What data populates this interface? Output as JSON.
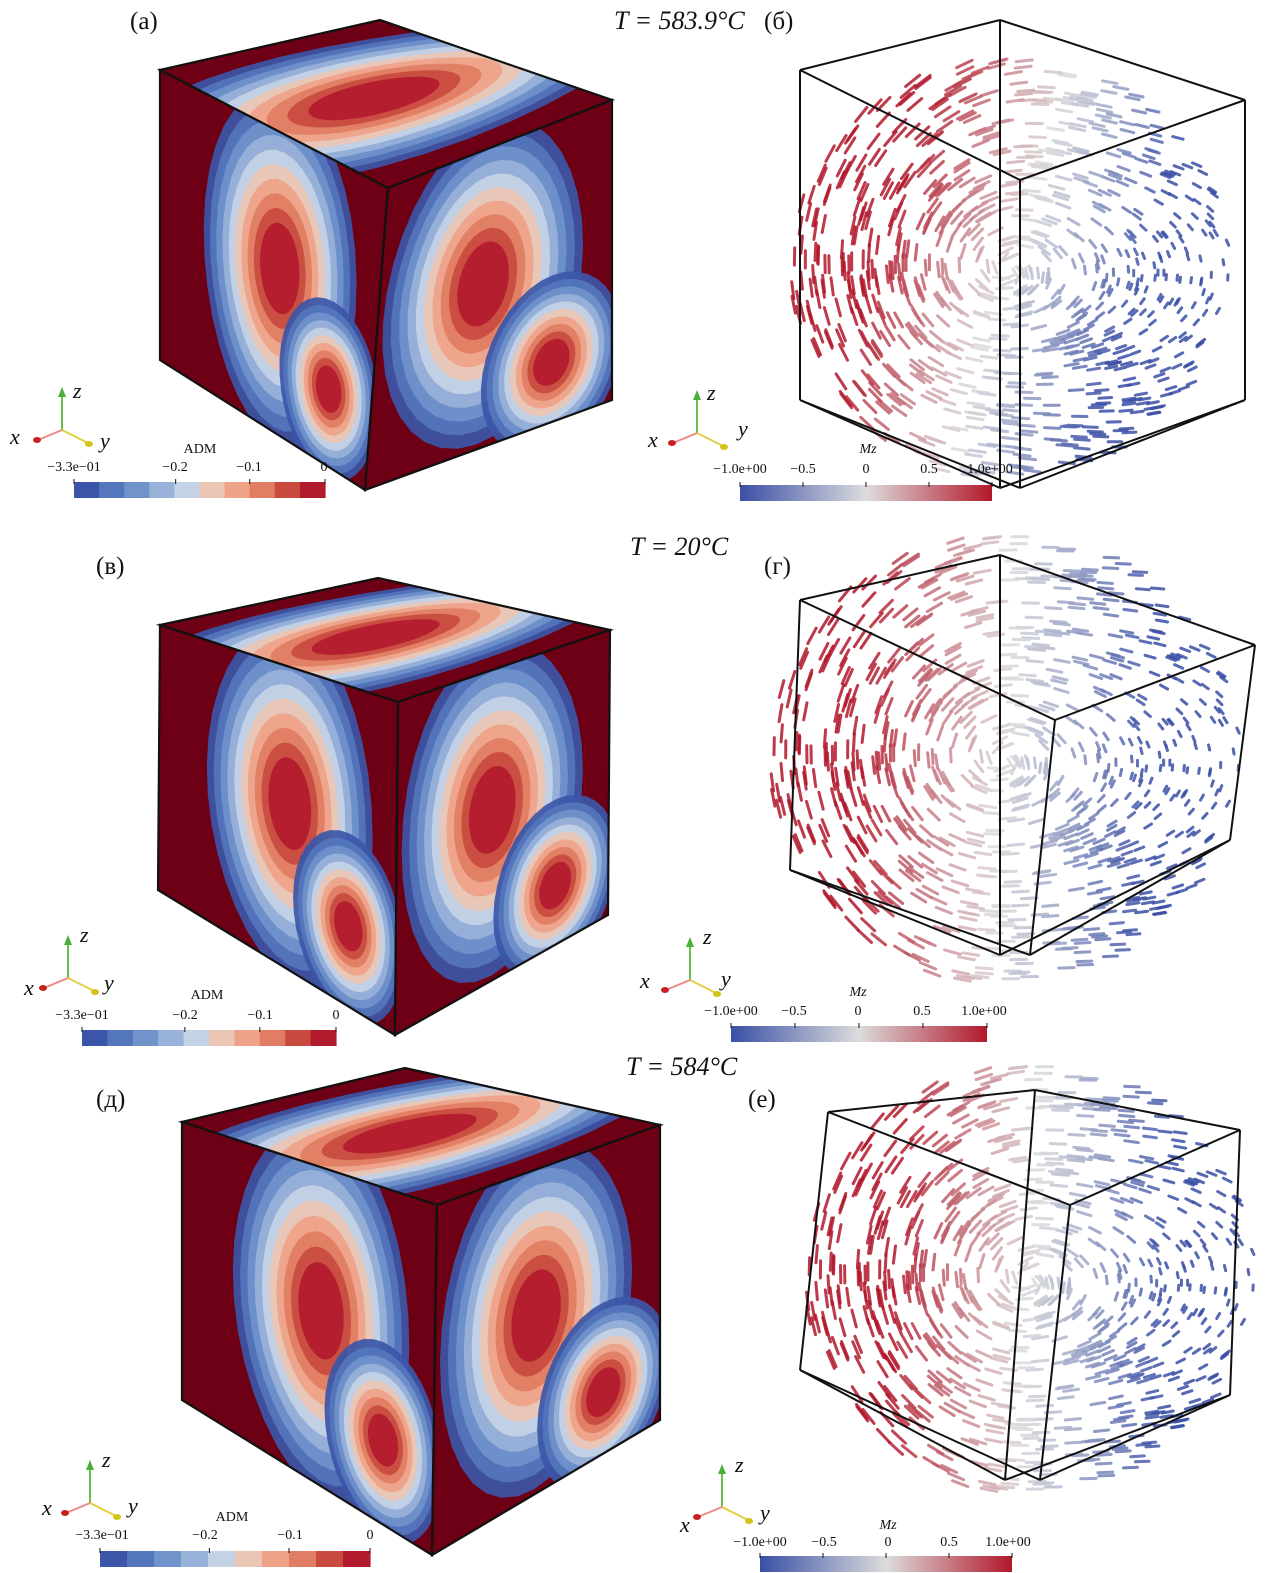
{
  "rows": [
    {
      "temperature": "T = 583.9°C",
      "left": {
        "label": "(а)",
        "colorbar": {
          "title": "ADM",
          "ticks": [
            "−3.3e−01",
            "−0.2",
            "−0.1",
            "0"
          ]
        }
      },
      "right": {
        "label": "(б)",
        "colorbar": {
          "title": "Mz",
          "ticks": [
            "−1.0e+00",
            "−0.5",
            "0",
            "0.5",
            "1.0e+00"
          ]
        }
      }
    },
    {
      "temperature": "T = 20°C",
      "left": {
        "label": "(в)",
        "colorbar": {
          "title": "ADM",
          "ticks": [
            "−3.3e−01",
            "−0.2",
            "−0.1",
            "0"
          ]
        }
      },
      "right": {
        "label": "(г)",
        "colorbar": {
          "title": "Mz",
          "ticks": [
            "−1.0e+00",
            "−0.5",
            "0",
            "0.5",
            "1.0e+00"
          ]
        }
      }
    },
    {
      "temperature": "T = 584°C",
      "left": {
        "label": "(д)",
        "colorbar": {
          "title": "ADM",
          "ticks": [
            "−3.3e−01",
            "−0.2",
            "−0.1",
            "0"
          ]
        }
      },
      "right": {
        "label": "(е)",
        "colorbar": {
          "title": "Mz",
          "ticks": [
            "−1.0e+00",
            "−0.5",
            "0",
            "0.5",
            "1.0e+00"
          ]
        }
      }
    }
  ],
  "axes": {
    "x": "x",
    "y": "y",
    "z": "z"
  },
  "colors": {
    "adm_steps": [
      "#3b56a8",
      "#5476bc",
      "#7193cb",
      "#98b2d9",
      "#c4d2e6",
      "#ebc6b4",
      "#eea288",
      "#e07d62",
      "#c94a3f",
      "#b21a2e"
    ],
    "mz_low": "#3a4fa6",
    "mz_mid": "#dcdcdc",
    "mz_high": "#b2182b",
    "dark_red": "#6e0015"
  }
}
